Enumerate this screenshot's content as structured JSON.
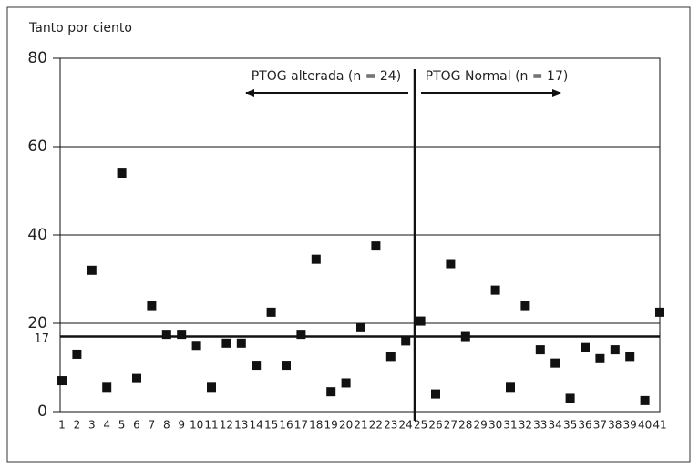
{
  "chart_data": {
    "type": "scatter",
    "y_axis_label": "Tanto por ciento",
    "annotations": [
      "PTOG alterada (n = 24)",
      "PTOG Normal (n = 17)"
    ],
    "categories": [
      "1",
      "2",
      "3",
      "4",
      "5",
      "6",
      "7",
      "8",
      "9",
      "10",
      "11",
      "12",
      "13",
      "14",
      "15",
      "16",
      "17",
      "18",
      "19",
      "20",
      "21",
      "22",
      "23",
      "24",
      "25",
      "26",
      "27",
      "28",
      "29",
      "30",
      "31",
      "32",
      "33",
      "34",
      "35",
      "36",
      "37",
      "38",
      "39",
      "40",
      "41"
    ],
    "values": [
      7,
      13,
      32,
      5.5,
      54,
      7.5,
      24,
      17.5,
      17.5,
      15,
      5.5,
      15.5,
      15.5,
      10.5,
      22.5,
      10.5,
      17.5,
      34.5,
      4.5,
      6.5,
      19,
      37.5,
      12.5,
      16,
      20.5,
      4,
      33.5,
      17,
      null,
      27.5,
      5.5,
      24,
      14,
      11,
      3,
      14.5,
      12,
      14,
      12.5,
      2.5,
      22.5
    ],
    "color": "#111111",
    "reference_line": 17,
    "ylim": [
      0,
      80
    ],
    "yticks": [
      0,
      20,
      40,
      60,
      80
    ],
    "grid": true
  }
}
